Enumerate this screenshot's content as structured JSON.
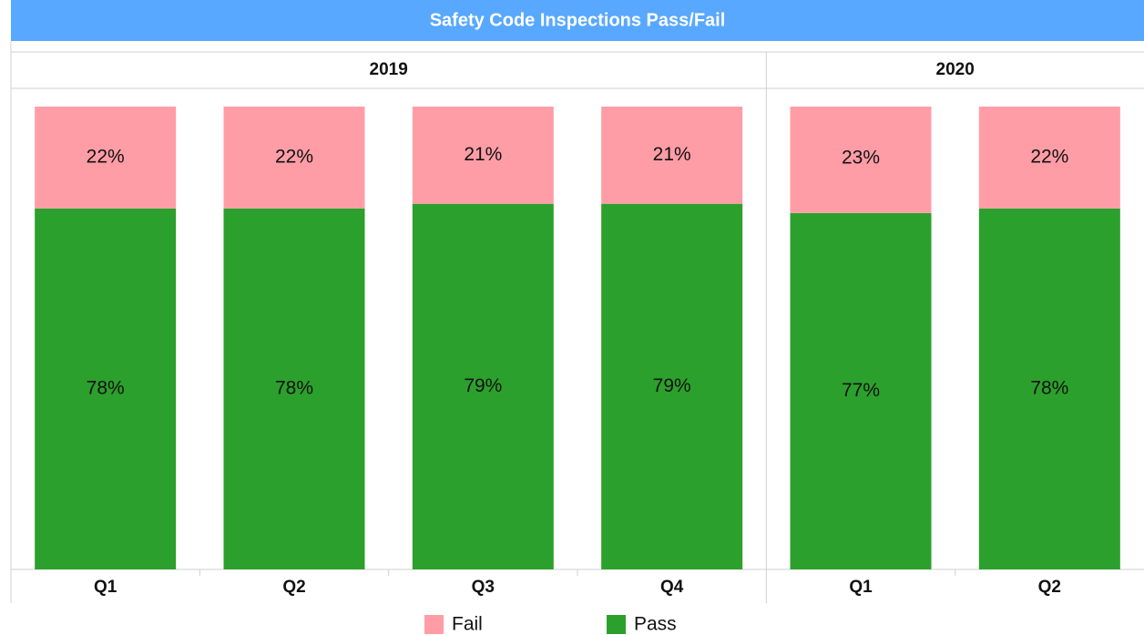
{
  "chart_data": {
    "type": "stacked_bar",
    "title": "Safety Code Inspections Pass/Fail",
    "groups": [
      {
        "label": "2019",
        "categories": [
          "Q1",
          "Q2",
          "Q3",
          "Q4"
        ]
      },
      {
        "label": "2020",
        "categories": [
          "Q1",
          "Q2"
        ]
      }
    ],
    "series": [
      {
        "name": "Pass",
        "color": "#2ca02c",
        "values": [
          78,
          78,
          79,
          79,
          77,
          78
        ],
        "value_labels": [
          "78%",
          "78%",
          "79%",
          "79%",
          "77%",
          "78%"
        ]
      },
      {
        "name": "Fail",
        "color": "#ff9da7",
        "values": [
          22,
          22,
          21,
          21,
          23,
          22
        ],
        "value_labels": [
          "22%",
          "22%",
          "21%",
          "21%",
          "23%",
          "22%"
        ]
      }
    ],
    "legend": "bottom"
  }
}
